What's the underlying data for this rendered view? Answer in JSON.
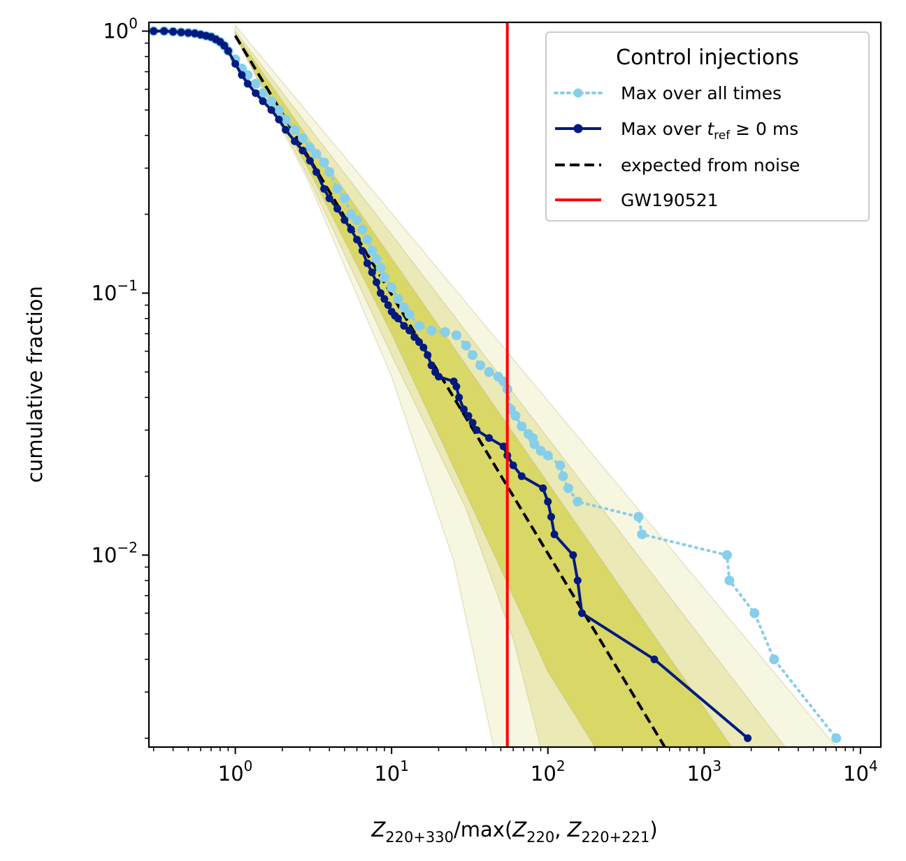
{
  "chart_data": {
    "type": "line",
    "xscale": "log",
    "yscale": "log",
    "xlim": [
      0.28,
      13500
    ],
    "ylim": [
      0.00185,
      1.08
    ],
    "xlabel": {
      "prefix": "Z",
      "sub1": "220+330",
      "mid": "/max(",
      "z2": "Z",
      "sub2": "220",
      "comma": ", ",
      "z3": "Z",
      "sub3": "220+221",
      "close": ")"
    },
    "ylabel": "cumulative fraction",
    "x_ticks": [
      {
        "value": 1,
        "base": "10",
        "exp": "0"
      },
      {
        "value": 10,
        "base": "10",
        "exp": "1"
      },
      {
        "value": 100,
        "base": "10",
        "exp": "2"
      },
      {
        "value": 1000,
        "base": "10",
        "exp": "3"
      },
      {
        "value": 10000,
        "base": "10",
        "exp": "4"
      }
    ],
    "y_ticks": [
      {
        "value": 1,
        "base": "10",
        "exp": "0"
      },
      {
        "value": 0.1,
        "base": "10",
        "exp": "−1"
      },
      {
        "value": 0.01,
        "base": "10",
        "exp": "−2"
      }
    ],
    "grid": false,
    "legend": {
      "title": "Control injections",
      "placement": "top-right",
      "entries": [
        {
          "label": "Max over all times",
          "style": "dotted-markers",
          "color": "#87ceeb"
        },
        {
          "label_main": "Max over ",
          "label_t": "t",
          "label_sub": "ref",
          "label_rest": " ≥ 0 ms",
          "style": "solid-markers",
          "color": "#001a80"
        },
        {
          "label": "expected from noise",
          "style": "dashed",
          "color": "#000000"
        },
        {
          "label": "GW190521",
          "style": "solid",
          "color": "#ff0000"
        }
      ]
    },
    "vline": {
      "name": "GW190521",
      "x": 55,
      "color": "#ff0000"
    },
    "expected": {
      "color": "#000000",
      "x": [
        1.0,
        560
      ],
      "y": [
        0.96,
        0.00185
      ]
    },
    "bands": {
      "fill_colors": [
        "#f7f6e0",
        "#ebe9b6",
        "#d9d766"
      ],
      "outer_upper": {
        "x": [
          1.0,
          7000
        ],
        "y": [
          1.05,
          0.00185
        ]
      },
      "outer_lower": {
        "x": [
          1.0,
          3,
          10,
          25,
          45
        ],
        "y": [
          0.96,
          0.26,
          0.048,
          0.0095,
          0.00185
        ]
      },
      "mid_upper": {
        "x": [
          1.0,
          3300
        ],
        "y": [
          1.0,
          0.00185
        ]
      },
      "mid_lower": {
        "x": [
          1.0,
          3,
          10,
          30,
          60,
          90
        ],
        "y": [
          0.96,
          0.27,
          0.058,
          0.015,
          0.0048,
          0.00185
        ]
      },
      "inner_upper": {
        "x": [
          1.0,
          1500
        ],
        "y": [
          0.98,
          0.00185
        ]
      },
      "inner_lower": {
        "x": [
          1.0,
          3,
          10,
          40,
          100,
          200
        ],
        "y": [
          0.96,
          0.29,
          0.07,
          0.0118,
          0.0036,
          0.00185
        ]
      }
    },
    "series": [
      {
        "name": "Max over all times",
        "color": "#87ceeb",
        "style": "dotted",
        "x": [
          0.3,
          0.35,
          0.4,
          0.45,
          0.5,
          0.55,
          0.6,
          0.65,
          0.7,
          0.75,
          0.8,
          0.85,
          0.9,
          1.0,
          1.1,
          1.2,
          1.35,
          1.5,
          1.7,
          1.9,
          2.1,
          2.4,
          2.7,
          3.0,
          3.3,
          3.7,
          4.0,
          4.5,
          5.0,
          5.5,
          6.0,
          6.5,
          7.0,
          7.5,
          8.0,
          8.5,
          9.0,
          10,
          11,
          12,
          13,
          15,
          18,
          22,
          26,
          30,
          33,
          37,
          42,
          48,
          52,
          55,
          58,
          62,
          68,
          75,
          80,
          82,
          90,
          100,
          120,
          125,
          135,
          155,
          380,
          400,
          1400,
          1450,
          2100,
          2800,
          7000
        ],
        "y": [
          1.0,
          1.0,
          0.995,
          0.99,
          0.985,
          0.98,
          0.97,
          0.96,
          0.95,
          0.93,
          0.91,
          0.88,
          0.84,
          0.78,
          0.72,
          0.68,
          0.63,
          0.58,
          0.54,
          0.5,
          0.46,
          0.42,
          0.39,
          0.36,
          0.34,
          0.315,
          0.29,
          0.25,
          0.23,
          0.2,
          0.19,
          0.175,
          0.16,
          0.145,
          0.135,
          0.125,
          0.115,
          0.105,
          0.095,
          0.088,
          0.083,
          0.075,
          0.072,
          0.071,
          0.069,
          0.063,
          0.058,
          0.053,
          0.05,
          0.048,
          0.046,
          0.043,
          0.036,
          0.034,
          0.031,
          0.029,
          0.028,
          0.0265,
          0.025,
          0.024,
          0.022,
          0.02,
          0.018,
          0.016,
          0.014,
          0.012,
          0.01,
          0.008,
          0.006,
          0.004,
          0.002
        ]
      },
      {
        "name": "Max over t_ref >= 0 ms",
        "color": "#001a80",
        "style": "solid",
        "x": [
          0.3,
          0.35,
          0.4,
          0.45,
          0.5,
          0.55,
          0.6,
          0.65,
          0.7,
          0.75,
          0.8,
          0.85,
          0.9,
          1.0,
          1.1,
          1.2,
          1.35,
          1.5,
          1.7,
          1.9,
          2.1,
          2.4,
          2.7,
          3.0,
          3.3,
          3.7,
          4.0,
          4.5,
          5.0,
          5.5,
          6.0,
          6.5,
          7.0,
          7.5,
          8.0,
          8.5,
          9.0,
          9.5,
          10,
          10.5,
          11,
          12,
          13,
          14,
          15,
          16,
          17,
          18,
          19,
          20,
          25,
          26,
          27,
          29,
          31,
          33,
          35,
          42,
          52,
          55,
          60,
          68,
          93,
          100,
          105,
          110,
          145,
          155,
          165,
          480,
          1900
        ],
        "y": [
          1.0,
          1.0,
          0.995,
          0.99,
          0.985,
          0.98,
          0.97,
          0.96,
          0.95,
          0.93,
          0.91,
          0.88,
          0.84,
          0.75,
          0.68,
          0.63,
          0.58,
          0.54,
          0.5,
          0.46,
          0.42,
          0.38,
          0.35,
          0.32,
          0.29,
          0.25,
          0.23,
          0.21,
          0.19,
          0.175,
          0.16,
          0.145,
          0.13,
          0.12,
          0.11,
          0.1,
          0.095,
          0.09,
          0.085,
          0.082,
          0.08,
          0.075,
          0.072,
          0.068,
          0.065,
          0.062,
          0.058,
          0.053,
          0.05,
          0.048,
          0.046,
          0.044,
          0.04,
          0.036,
          0.034,
          0.032,
          0.03,
          0.028,
          0.026,
          0.024,
          0.022,
          0.02,
          0.018,
          0.016,
          0.014,
          0.012,
          0.01,
          0.008,
          0.006,
          0.004,
          0.002
        ]
      }
    ]
  }
}
